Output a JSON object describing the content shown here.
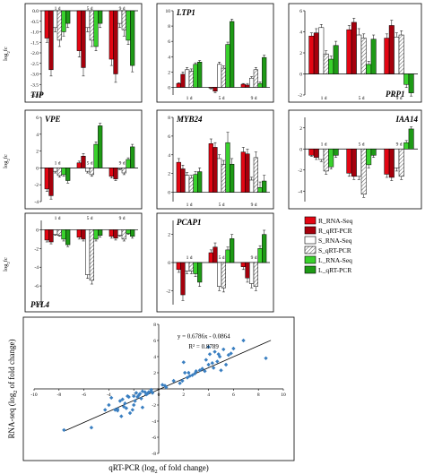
{
  "colors": {
    "R_RNA-Seq": "#e30613",
    "R_qRT-PCR": "#a5000c",
    "S_RNA-Seq": "#ffffff",
    "S_qRT-PCR": "#bdbdbd",
    "L_RNA-Seq": "#39d12c",
    "L_qRT-PCR": "#1e9a16",
    "scatter_point": "#3a7fc1",
    "axis": "#000000"
  },
  "legend": {
    "items": [
      "R_RNA-Seq",
      "R_qRT-PCR",
      "S_RNA-Seq",
      "S_qRT-PCR",
      "L_RNA-Seq",
      "L_qRT-PCR"
    ]
  },
  "ylabel_panels": "log2fc",
  "chart_data": [
    {
      "type": "bar",
      "title": "TIP",
      "title_corner": "bottom-left",
      "categories": [
        "1 d",
        "5 d",
        "9 d"
      ],
      "ylim": [
        -4.0,
        0
      ],
      "yticks": [
        "0.0",
        "-0.5",
        "-1.0",
        "-1.5",
        "-2.0",
        "-2.5",
        "-3.0",
        "-3.5",
        "-4.0"
      ],
      "series": [
        {
          "name": "R_RNA-Seq",
          "values": [
            -1.3,
            -1.9,
            -2.3
          ],
          "errors": [
            0.2,
            0.3,
            0.3
          ]
        },
        {
          "name": "R_qRT-PCR",
          "values": [
            -2.8,
            -2.7,
            -3.0
          ],
          "errors": [
            0.3,
            0.4,
            0.4
          ]
        },
        {
          "name": "S_RNA-Seq",
          "values": [
            -0.8,
            -0.8,
            -0.6
          ],
          "errors": [
            0.2,
            0.2,
            0.2
          ]
        },
        {
          "name": "S_qRT-PCR",
          "values": [
            -1.4,
            -1.4,
            -0.9
          ],
          "errors": [
            0.3,
            0.3,
            0.3
          ]
        },
        {
          "name": "L_RNA-Seq",
          "values": [
            -1.0,
            -1.7,
            -1.4
          ],
          "errors": [
            0.2,
            0.2,
            0.2
          ]
        },
        {
          "name": "L_qRT-PCR",
          "values": [
            -0.6,
            -0.6,
            -2.6
          ],
          "errors": [
            0.2,
            0.2,
            0.3
          ]
        }
      ]
    },
    {
      "type": "bar",
      "title": "LTP1",
      "title_corner": "top-left",
      "categories": [
        "1 d",
        "5 d",
        "9 d"
      ],
      "ylim": [
        -1,
        10
      ],
      "yticks": [
        "0",
        "2",
        "4",
        "6",
        "8",
        "10"
      ],
      "series": [
        {
          "name": "R_RNA-Seq",
          "values": [
            0.5,
            -0.1,
            0.4
          ],
          "errors": [
            0.1,
            0.1,
            0.1
          ]
        },
        {
          "name": "R_qRT-PCR",
          "values": [
            1.7,
            -0.5,
            0.3
          ],
          "errors": [
            0.3,
            0.2,
            0.2
          ]
        },
        {
          "name": "S_RNA-Seq",
          "values": [
            2.3,
            3.0,
            1.2
          ],
          "errors": [
            0.3,
            0.3,
            0.2
          ]
        },
        {
          "name": "S_qRT-PCR",
          "values": [
            2.1,
            2.5,
            2.3
          ],
          "errors": [
            0.3,
            0.3,
            0.3
          ]
        },
        {
          "name": "L_RNA-Seq",
          "values": [
            3.0,
            5.6,
            0.5
          ],
          "errors": [
            0.2,
            0.3,
            0.2
          ]
        },
        {
          "name": "L_qRT-PCR",
          "values": [
            3.3,
            8.6,
            3.9
          ],
          "errors": [
            0.2,
            0.3,
            0.3
          ]
        }
      ]
    },
    {
      "type": "bar",
      "title": "PRP1",
      "title_corner": "bottom-right",
      "categories": [
        "1 d",
        "5 d",
        "9 d"
      ],
      "ylim": [
        -2,
        6
      ],
      "yticks": [
        "6",
        "4",
        "2",
        "0",
        "-2"
      ],
      "series": [
        {
          "name": "R_RNA-Seq",
          "values": [
            3.6,
            4.2,
            3.4
          ],
          "errors": [
            0.3,
            0.4,
            0.4
          ]
        },
        {
          "name": "R_qRT-PCR",
          "values": [
            3.9,
            4.9,
            4.6
          ],
          "errors": [
            0.4,
            0.4,
            0.5
          ]
        },
        {
          "name": "S_RNA-Seq",
          "values": [
            4.4,
            3.7,
            3.5
          ],
          "errors": [
            0.3,
            0.6,
            0.4
          ]
        },
        {
          "name": "S_qRT-PCR",
          "values": [
            1.9,
            3.4,
            3.7
          ],
          "errors": [
            0.3,
            0.4,
            0.4
          ]
        },
        {
          "name": "L_RNA-Seq",
          "values": [
            1.4,
            0.9,
            -1.0
          ],
          "errors": [
            0.3,
            0.3,
            0.3
          ]
        },
        {
          "name": "L_qRT-PCR",
          "values": [
            2.7,
            3.3,
            -1.8
          ],
          "errors": [
            0.4,
            0.4,
            0.3
          ]
        }
      ]
    },
    {
      "type": "bar",
      "title": "VPE",
      "title_corner": "top-left",
      "categories": [
        "1 d",
        "5 d",
        "9 d"
      ],
      "ylim": [
        -4,
        6
      ],
      "yticks": [
        "6",
        "4",
        "2",
        "0",
        "-2",
        "-4"
      ],
      "series": [
        {
          "name": "R_RNA-Seq",
          "values": [
            -2.5,
            0.6,
            -1.0
          ],
          "errors": [
            0.3,
            0.2,
            0.2
          ]
        },
        {
          "name": "R_qRT-PCR",
          "values": [
            -3.3,
            1.4,
            -1.3
          ],
          "errors": [
            0.4,
            0.3,
            0.2
          ]
        },
        {
          "name": "S_RNA-Seq",
          "values": [
            -0.4,
            -0.4,
            -0.1
          ],
          "errors": [
            0.2,
            0.2,
            0.1
          ]
        },
        {
          "name": "S_qRT-PCR",
          "values": [
            -0.9,
            -0.8,
            -0.6
          ],
          "errors": [
            0.2,
            0.2,
            0.2
          ]
        },
        {
          "name": "L_RNA-Seq",
          "values": [
            -0.8,
            2.8,
            1.0
          ],
          "errors": [
            0.2,
            0.3,
            0.2
          ]
        },
        {
          "name": "L_qRT-PCR",
          "values": [
            -1.5,
            5.0,
            2.5
          ],
          "errors": [
            0.3,
            0.3,
            0.3
          ]
        }
      ]
    },
    {
      "type": "bar",
      "title": "MYB24",
      "title_corner": "top-left",
      "categories": [
        "1 d",
        "5 d",
        "9 d"
      ],
      "ylim": [
        -1,
        8
      ],
      "yticks": [
        "0",
        "2",
        "4",
        "6",
        "8"
      ],
      "series": [
        {
          "name": "R_RNA-Seq",
          "values": [
            3.2,
            5.2,
            4.3
          ],
          "errors": [
            0.4,
            0.5,
            0.5
          ]
        },
        {
          "name": "R_qRT-PCR",
          "values": [
            2.5,
            4.8,
            4.1
          ],
          "errors": [
            0.4,
            0.5,
            0.5
          ]
        },
        {
          "name": "S_RNA-Seq",
          "values": [
            1.8,
            3.6,
            1.3
          ],
          "errors": [
            0.3,
            0.4,
            0.3
          ]
        },
        {
          "name": "S_qRT-PCR",
          "values": [
            1.5,
            3.0,
            3.7
          ],
          "errors": [
            0.3,
            0.4,
            0.6
          ]
        },
        {
          "name": "L_RNA-Seq",
          "values": [
            1.9,
            5.3,
            0.5
          ],
          "errors": [
            0.3,
            1.1,
            0.6
          ]
        },
        {
          "name": "L_qRT-PCR",
          "values": [
            2.2,
            3.0,
            1.2
          ],
          "errors": [
            0.4,
            0.6,
            0.6
          ]
        }
      ]
    },
    {
      "type": "bar",
      "title": "IAA14",
      "title_corner": "top-right",
      "categories": [
        "1 d",
        "5 d",
        "9 d"
      ],
      "ylim": [
        -5,
        3
      ],
      "yticks": [
        "2",
        "0",
        "-2",
        "-4"
      ],
      "series": [
        {
          "name": "R_RNA-Seq",
          "values": [
            -0.6,
            -2.3,
            -2.4
          ],
          "errors": [
            0.1,
            0.3,
            0.3
          ]
        },
        {
          "name": "R_qRT-PCR",
          "values": [
            -0.8,
            -2.6,
            -2.7
          ],
          "errors": [
            0.2,
            0.3,
            0.3
          ]
        },
        {
          "name": "S_RNA-Seq",
          "values": [
            -1.0,
            -2.6,
            -1.8
          ],
          "errors": [
            0.2,
            0.3,
            0.3
          ]
        },
        {
          "name": "S_qRT-PCR",
          "values": [
            -2.1,
            -4.3,
            -2.6
          ],
          "errors": [
            0.3,
            0.3,
            0.3
          ]
        },
        {
          "name": "L_RNA-Seq",
          "values": [
            -1.7,
            -1.5,
            0.6
          ],
          "errors": [
            0.2,
            0.3,
            0.2
          ]
        },
        {
          "name": "L_qRT-PCR",
          "values": [
            -0.6,
            -0.6,
            1.9
          ],
          "errors": [
            0.2,
            0.2,
            0.2
          ]
        }
      ]
    },
    {
      "type": "bar",
      "title": "PYL4",
      "title_corner": "bottom-left",
      "categories": [
        "1 d",
        "5 d",
        "9 d"
      ],
      "ylim": [
        -8,
        1
      ],
      "yticks": [
        "0",
        "-2",
        "-4",
        "-6",
        "-8"
      ],
      "series": [
        {
          "name": "R_RNA-Seq",
          "values": [
            -1.1,
            -0.8,
            -0.7
          ],
          "errors": [
            0.2,
            0.2,
            0.2
          ]
        },
        {
          "name": "R_qRT-PCR",
          "values": [
            -1.3,
            -1.0,
            -0.9
          ],
          "errors": [
            0.2,
            0.2,
            0.2
          ]
        },
        {
          "name": "S_RNA-Seq",
          "values": [
            -0.5,
            -4.8,
            -0.6
          ],
          "errors": [
            0.1,
            0.4,
            0.1
          ]
        },
        {
          "name": "S_qRT-PCR",
          "values": [
            -0.6,
            -5.4,
            -1.0
          ],
          "errors": [
            0.1,
            0.4,
            0.2
          ]
        },
        {
          "name": "L_RNA-Seq",
          "values": [
            -1.0,
            -1.0,
            -0.4
          ],
          "errors": [
            0.2,
            0.2,
            0.1
          ]
        },
        {
          "name": "L_qRT-PCR",
          "values": [
            -1.6,
            -0.6,
            -0.7
          ],
          "errors": [
            0.2,
            0.2,
            0.2
          ]
        }
      ]
    },
    {
      "type": "bar",
      "title": "PCAP1",
      "title_corner": "top-left",
      "categories": [
        "1 d",
        "5 d",
        "9 d"
      ],
      "ylim": [
        -3,
        3
      ],
      "yticks": [
        "2",
        "0",
        "-2"
      ],
      "series": [
        {
          "name": "R_RNA-Seq",
          "values": [
            -0.5,
            0.7,
            -0.3
          ],
          "errors": [
            0.2,
            0.2,
            0.2
          ]
        },
        {
          "name": "R_qRT-PCR",
          "values": [
            -2.3,
            1.1,
            -1.1
          ],
          "errors": [
            0.4,
            0.3,
            0.3
          ]
        },
        {
          "name": "S_RNA-Seq",
          "values": [
            -0.6,
            -1.7,
            -1.5
          ],
          "errors": [
            0.2,
            0.3,
            0.3
          ]
        },
        {
          "name": "S_qRT-PCR",
          "values": [
            -0.6,
            -1.8,
            -1.7
          ],
          "errors": [
            0.2,
            0.3,
            0.3
          ]
        },
        {
          "name": "L_RNA-Seq",
          "values": [
            -0.8,
            0.9,
            1.0
          ],
          "errors": [
            0.2,
            0.2,
            0.2
          ]
        },
        {
          "name": "L_qRT-PCR",
          "values": [
            -1.4,
            1.7,
            2.0
          ],
          "errors": [
            0.3,
            0.3,
            0.3
          ]
        }
      ]
    },
    {
      "type": "scatter",
      "xlabel": "qRT-PCR (log2 of fold change)",
      "ylabel": "RNA-seq (log2 of fold change)",
      "xlim": [
        -10,
        10
      ],
      "ylim": [
        -8,
        8
      ],
      "xticks": [
        "-10",
        "-8",
        "-6",
        "-4",
        "-2",
        "0",
        "2",
        "4",
        "6",
        "8",
        "10"
      ],
      "yticks": [
        "8",
        "6",
        "4",
        "2",
        "0",
        "-2",
        "-4",
        "-6",
        "-8"
      ],
      "equation": "y = 0.6786x - 0.0864",
      "r2": "R² = 0.8789",
      "fit": {
        "slope": 0.6786,
        "intercept": -0.0864,
        "x_range": [
          -7.5,
          9
        ]
      },
      "points": [
        [
          -7.6,
          -5.1
        ],
        [
          -5.4,
          -4.8
        ],
        [
          -4.3,
          -2.6
        ],
        [
          -4.0,
          -2.0
        ],
        [
          -3.8,
          -1.1
        ],
        [
          -3.5,
          -2.6
        ],
        [
          -3.3,
          -2.5
        ],
        [
          -3.3,
          -2.7
        ],
        [
          -3.1,
          -1.5
        ],
        [
          -3.0,
          -3.4
        ],
        [
          -2.9,
          -1.3
        ],
        [
          -2.8,
          -2.2
        ],
        [
          -2.7,
          -1.8
        ],
        [
          -2.6,
          -2.4
        ],
        [
          -2.5,
          -0.9
        ],
        [
          -2.4,
          -1.0
        ],
        [
          -2.3,
          -3.0
        ],
        [
          -2.1,
          -2.6
        ],
        [
          -2.0,
          -0.9
        ],
        [
          -2.0,
          -2.0
        ],
        [
          -1.9,
          -1.5
        ],
        [
          -1.8,
          -0.5
        ],
        [
          -1.7,
          -1.0
        ],
        [
          -1.6,
          -0.8
        ],
        [
          -1.5,
          -0.6
        ],
        [
          -1.4,
          -1.2
        ],
        [
          -1.3,
          -2.3
        ],
        [
          -1.3,
          -0.3
        ],
        [
          -1.1,
          -0.4
        ],
        [
          -1.0,
          -0.7
        ],
        [
          -0.9,
          -0.6
        ],
        [
          -0.8,
          -0.4
        ],
        [
          -0.6,
          -0.3
        ],
        [
          -0.6,
          -0.1
        ],
        [
          -0.5,
          -0.5
        ],
        [
          0.3,
          0.5
        ],
        [
          0.5,
          0.4
        ],
        [
          0.6,
          0.2
        ],
        [
          1.2,
          1.0
        ],
        [
          1.7,
          0.7
        ],
        [
          1.9,
          1.0
        ],
        [
          2.1,
          2.0
        ],
        [
          2.3,
          1.4
        ],
        [
          2.4,
          2.0
        ],
        [
          2.5,
          1.6
        ],
        [
          2.7,
          1.7
        ],
        [
          2.9,
          1.9
        ],
        [
          3.0,
          2.2
        ],
        [
          3.3,
          2.3
        ],
        [
          3.5,
          2.5
        ],
        [
          3.7,
          2.2
        ],
        [
          3.8,
          3.6
        ],
        [
          4.0,
          3.0
        ],
        [
          4.1,
          4.3
        ],
        [
          4.3,
          3.2
        ],
        [
          4.4,
          2.6
        ],
        [
          4.5,
          4.6
        ],
        [
          4.7,
          3.4
        ],
        [
          4.8,
          4.3
        ],
        [
          4.9,
          4.0
        ],
        [
          5.0,
          2.3
        ],
        [
          5.2,
          4.9
        ],
        [
          5.4,
          3.0
        ],
        [
          5.6,
          4.2
        ],
        [
          5.8,
          4.4
        ],
        [
          6.0,
          5.0
        ],
        [
          6.8,
          6.0
        ],
        [
          8.6,
          3.8
        ],
        [
          4.0,
          5.2
        ],
        [
          2.0,
          3.3
        ]
      ]
    }
  ]
}
